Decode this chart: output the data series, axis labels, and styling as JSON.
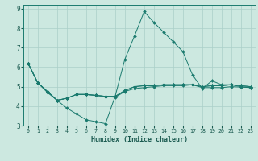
{
  "title": "",
  "xlabel": "Humidex (Indice chaleur)",
  "xlim": [
    -0.5,
    23.5
  ],
  "ylim": [
    3,
    9.2
  ],
  "yticks": [
    3,
    4,
    5,
    6,
    7,
    8,
    9
  ],
  "xticks": [
    0,
    1,
    2,
    3,
    4,
    5,
    6,
    7,
    8,
    9,
    10,
    11,
    12,
    13,
    14,
    15,
    16,
    17,
    18,
    19,
    20,
    21,
    22,
    23
  ],
  "background_color": "#cce8e0",
  "grid_color": "#aacfc8",
  "line_color": "#1a7a6e",
  "lines": [
    [
      6.2,
      5.2,
      4.7,
      4.3,
      3.9,
      3.6,
      3.3,
      3.2,
      3.1,
      4.5,
      6.4,
      7.6,
      8.85,
      8.3,
      7.8,
      7.3,
      6.8,
      5.6,
      4.9,
      5.3,
      5.1,
      5.1,
      5.0,
      4.95
    ],
    [
      6.2,
      5.2,
      4.75,
      4.3,
      4.4,
      4.6,
      4.6,
      4.55,
      4.5,
      4.5,
      4.8,
      5.0,
      5.05,
      5.05,
      5.1,
      5.1,
      5.1,
      5.1,
      5.0,
      5.05,
      5.05,
      5.1,
      5.05,
      5.0
    ],
    [
      6.2,
      5.2,
      4.75,
      4.3,
      4.4,
      4.6,
      4.6,
      4.55,
      4.5,
      4.5,
      4.8,
      5.0,
      5.05,
      5.05,
      5.1,
      5.1,
      5.1,
      5.1,
      5.0,
      5.05,
      5.05,
      5.1,
      5.05,
      5.0
    ],
    [
      6.2,
      5.2,
      4.75,
      4.3,
      4.4,
      4.6,
      4.6,
      4.55,
      4.5,
      4.45,
      4.75,
      4.9,
      4.95,
      5.0,
      5.05,
      5.05,
      5.05,
      5.1,
      4.95,
      4.95,
      4.95,
      5.0,
      4.98,
      4.95
    ]
  ],
  "xlabel_fontsize": 6.0,
  "xtick_fontsize": 4.8,
  "ytick_fontsize": 5.5
}
